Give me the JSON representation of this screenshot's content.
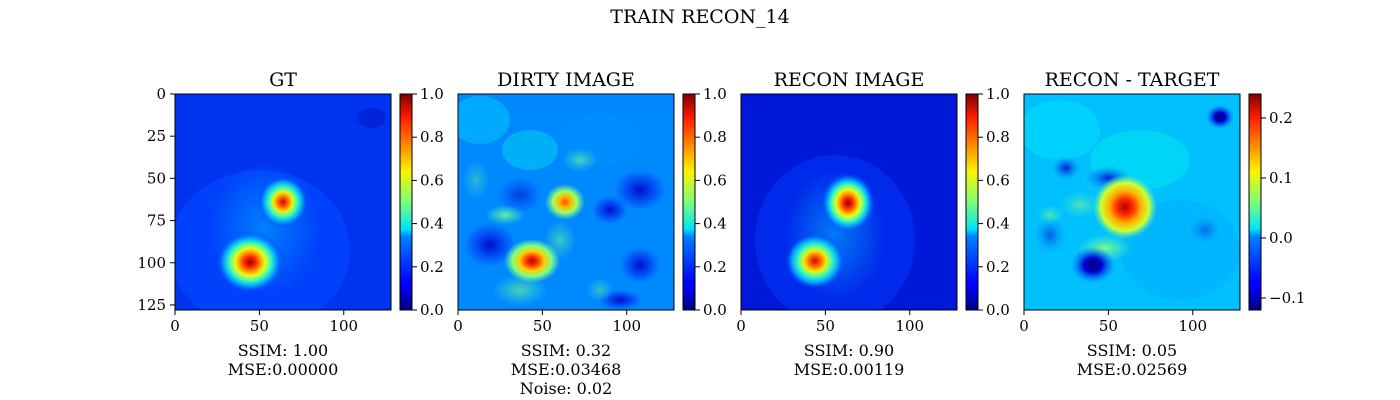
{
  "figure": {
    "title": "TRAIN RECON_14"
  },
  "chart_data": [
    {
      "type": "heatmap",
      "title": "GT",
      "xlabel": "",
      "ylabel": "",
      "colormap": "jet",
      "xlim": [
        0,
        128
      ],
      "ylim": [
        128,
        0
      ],
      "xticks": [
        "0",
        "50",
        "100"
      ],
      "yticks": [
        "0",
        "25",
        "50",
        "75",
        "100",
        "125"
      ],
      "colorbar": {
        "range": [
          0.0,
          1.0
        ],
        "ticks": [
          "0.0",
          "0.2",
          "0.4",
          "0.6",
          "0.8",
          "1.0"
        ]
      },
      "blobs": [
        {
          "x": 64,
          "y": 64,
          "peak": 0.85,
          "label": "upper source"
        },
        {
          "x": 43,
          "y": 99,
          "peak": 1.0,
          "label": "lower source"
        }
      ],
      "caption": [
        "SSIM: 1.00",
        "MSE:0.00000"
      ]
    },
    {
      "type": "heatmap",
      "title": "DIRTY IMAGE",
      "xlabel": "",
      "ylabel": "",
      "colormap": "jet",
      "xlim": [
        0,
        128
      ],
      "ylim": [
        128,
        0
      ],
      "xticks": [
        "0",
        "50",
        "100"
      ],
      "yticks": [],
      "colorbar": {
        "range": [
          0.0,
          1.0
        ],
        "ticks": [
          "0.0",
          "0.2",
          "0.4",
          "0.6",
          "0.8",
          "1.0"
        ]
      },
      "blobs": [
        {
          "x": 63,
          "y": 64,
          "peak": 0.75
        },
        {
          "x": 43,
          "y": 99,
          "peak": 0.95
        }
      ],
      "caption": [
        "SSIM: 0.32",
        "MSE:0.03468",
        "Noise: 0.02"
      ]
    },
    {
      "type": "heatmap",
      "title": "RECON IMAGE",
      "xlabel": "",
      "ylabel": "",
      "colormap": "jet",
      "xlim": [
        0,
        128
      ],
      "ylim": [
        128,
        0
      ],
      "xticks": [
        "0",
        "50",
        "100"
      ],
      "yticks": [],
      "colorbar": {
        "range": [
          0.0,
          1.0
        ],
        "ticks": [
          "0.0",
          "0.2",
          "0.4",
          "0.6",
          "0.8",
          "1.0"
        ]
      },
      "blobs": [
        {
          "x": 64,
          "y": 63,
          "peak": 0.95
        },
        {
          "x": 44,
          "y": 99,
          "peak": 0.9
        }
      ],
      "caption": [
        "SSIM: 0.90",
        "MSE:0.00119"
      ]
    },
    {
      "type": "heatmap",
      "title": "RECON - TARGET",
      "xlabel": "",
      "ylabel": "",
      "colormap": "jet",
      "xlim": [
        0,
        128
      ],
      "ylim": [
        128,
        0
      ],
      "xticks": [
        "0",
        "50",
        "100"
      ],
      "yticks": [],
      "colorbar": {
        "range": [
          -0.12,
          0.24
        ],
        "ticks": [
          "0.2",
          "0.1",
          "0.0",
          "−0.1"
        ]
      },
      "blobs": [
        {
          "x": 60,
          "y": 62,
          "peak": 0.22,
          "label": "positive residual"
        },
        {
          "x": 40,
          "y": 101,
          "peak": -0.12,
          "label": "negative residual"
        },
        {
          "x": 55,
          "y": 45,
          "peak": -0.08
        },
        {
          "x": 118,
          "y": 13,
          "peak": -0.1
        }
      ],
      "caption": [
        "SSIM: 0.05",
        "MSE:0.02569"
      ]
    }
  ]
}
